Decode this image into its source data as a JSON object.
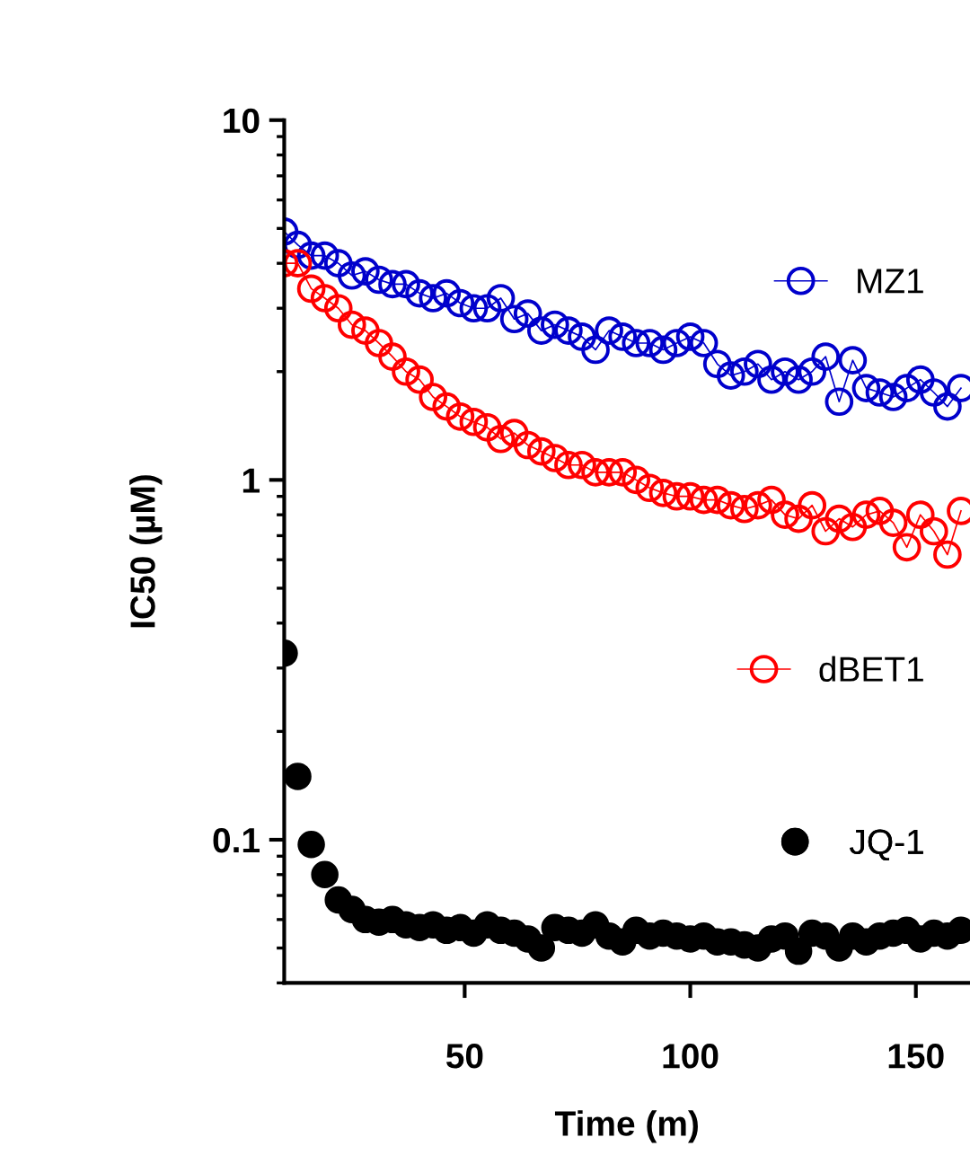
{
  "chart_data": {
    "type": "line",
    "xlabel": "Time (m)",
    "ylabel": "IC50 (µM)",
    "log": "y",
    "x": [
      10,
      13,
      16,
      19,
      22,
      25,
      28,
      31,
      34,
      37,
      40,
      43,
      46,
      49,
      52,
      55,
      58,
      61,
      64,
      67,
      70,
      73,
      76,
      79,
      82,
      85,
      88,
      91,
      94,
      97,
      100,
      103,
      106,
      109,
      112,
      115,
      118,
      121,
      124,
      127,
      130,
      133,
      136,
      139,
      142,
      145,
      148,
      151,
      154,
      157,
      160
    ],
    "series": [
      {
        "name": "MZ1",
        "color": "#0000cc",
        "marker": "circle",
        "values": [
          4.9,
          4.5,
          4.2,
          4.2,
          4.0,
          3.7,
          3.8,
          3.6,
          3.5,
          3.5,
          3.3,
          3.2,
          3.3,
          3.1,
          3.0,
          3.0,
          3.2,
          2.8,
          2.9,
          2.6,
          2.7,
          2.6,
          2.5,
          2.3,
          2.6,
          2.5,
          2.4,
          2.4,
          2.3,
          2.4,
          2.5,
          2.4,
          2.1,
          1.95,
          2.0,
          2.1,
          1.9,
          2.0,
          1.9,
          2.0,
          2.2,
          1.65,
          2.15,
          1.8,
          1.75,
          1.7,
          1.8,
          1.9,
          1.75,
          1.6,
          1.8
        ]
      },
      {
        "name": "dBET1",
        "color": "#ff0000",
        "marker": "circle",
        "values": [
          4.0,
          4.0,
          3.4,
          3.2,
          3.0,
          2.7,
          2.6,
          2.4,
          2.2,
          2.0,
          1.9,
          1.7,
          1.6,
          1.5,
          1.45,
          1.4,
          1.3,
          1.35,
          1.25,
          1.2,
          1.15,
          1.1,
          1.1,
          1.05,
          1.05,
          1.05,
          1.0,
          0.95,
          0.92,
          0.9,
          0.9,
          0.88,
          0.88,
          0.85,
          0.83,
          0.85,
          0.88,
          0.8,
          0.78,
          0.85,
          0.72,
          0.78,
          0.74,
          0.8,
          0.82,
          0.76,
          0.65,
          0.8,
          0.72,
          0.62,
          0.82
        ]
      },
      {
        "name": "JQ-1",
        "color": "#000000",
        "type": "scatter",
        "marker": "circle",
        "values": [
          0.33,
          0.15,
          0.097,
          0.08,
          0.068,
          0.064,
          0.06,
          0.059,
          0.06,
          0.058,
          0.057,
          0.058,
          0.056,
          0.057,
          0.055,
          0.058,
          0.056,
          0.055,
          0.053,
          0.05,
          0.057,
          0.056,
          0.055,
          0.058,
          0.054,
          0.052,
          0.056,
          0.054,
          0.055,
          0.054,
          0.053,
          0.054,
          0.052,
          0.052,
          0.051,
          0.05,
          0.053,
          0.054,
          0.049,
          0.055,
          0.054,
          0.05,
          0.054,
          0.052,
          0.054,
          0.055,
          0.056,
          0.053,
          0.055,
          0.054,
          0.056
        ]
      }
    ],
    "xlim": [
      10,
      162
    ],
    "ylim": [
      0.04,
      10
    ],
    "xticks": [
      50,
      100,
      150
    ],
    "yticks": [
      0.1,
      1,
      10
    ],
    "grid": false,
    "legend": "right"
  }
}
